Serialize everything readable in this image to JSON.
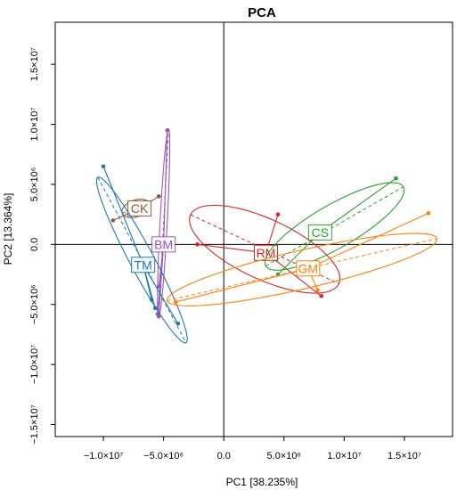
{
  "chart_data": {
    "type": "scatter",
    "title": "PCA",
    "xlabel": "PC1 [38.235%]",
    "ylabel": "PC2 [13.364%]",
    "xlim": [
      -14000000,
      19000000
    ],
    "ylim": [
      -16000000,
      18500000
    ],
    "x_ticks": [
      {
        "value": -10000000,
        "label": "−1.0×10⁷"
      },
      {
        "value": -5000000,
        "label": "−5.0×10⁶"
      },
      {
        "value": 0,
        "label": "0.0"
      },
      {
        "value": 5000000,
        "label": "5.0×10⁶"
      },
      {
        "value": 10000000,
        "label": "1.0×10⁷"
      },
      {
        "value": 15000000,
        "label": "1.5×10⁷"
      }
    ],
    "y_ticks": [
      {
        "value": -15000000,
        "label": "−1.5×10⁷"
      },
      {
        "value": -10000000,
        "label": "−1.0×10⁷"
      },
      {
        "value": -5000000,
        "label": "−5.0×10⁶"
      },
      {
        "value": 0,
        "label": "0.0"
      },
      {
        "value": 5000000,
        "label": "5.0×10⁶"
      },
      {
        "value": 10000000,
        "label": "1.0×10⁷"
      },
      {
        "value": 15000000,
        "label": "1.5×10⁷"
      }
    ],
    "reference_lines": {
      "x": 0,
      "y": 0
    },
    "grid": false,
    "legend": "none",
    "series": [
      {
        "name": "CK",
        "color": "#8B5A3C",
        "centroid": [
          -7000000,
          3000000
        ],
        "points": [
          [
            -5400000,
            4000000
          ],
          [
            -9200000,
            2000000
          ]
        ],
        "ellipse": {
          "cx": -7300000,
          "cy": 3000000,
          "rx": 1200000,
          "ry": 700000,
          "angle": 20
        }
      },
      {
        "name": "BM",
        "color": "#9B59B6",
        "centroid": [
          -5000000,
          0
        ],
        "points": [
          [
            -4700000,
            9500000
          ],
          [
            -5400000,
            -6000000
          ],
          [
            -5400000,
            -3500000
          ],
          [
            -5500000,
            -5800000
          ]
        ],
        "ellipse": {
          "cx": -5000000,
          "cy": 1750000,
          "rx": 7900000,
          "ry": 300000,
          "angle": 87
        }
      },
      {
        "name": "TM",
        "color": "#1F77B4",
        "centroid": [
          -6700000,
          -1700000
        ],
        "points": [
          [
            -10000000,
            6500000
          ],
          [
            -3800000,
            -6600000
          ],
          [
            -6000000,
            -4600000
          ],
          [
            -5700000,
            -5300000
          ]
        ],
        "ellipse": {
          "cx": -6800000,
          "cy": -1300000,
          "rx": 7800000,
          "ry": 1000000,
          "angle": -62
        }
      },
      {
        "name": "RM",
        "color": "#D62728",
        "centroid": [
          3500000,
          -700000
        ],
        "points": [
          [
            -2200000,
            0
          ],
          [
            4500000,
            2500000
          ],
          [
            8100000,
            -4300000
          ]
        ],
        "ellipse": {
          "cx": 3400000,
          "cy": -400000,
          "rx": 6800000,
          "ry": 2500000,
          "angle": -25
        }
      },
      {
        "name": "CS",
        "color": "#2CA02C",
        "centroid": [
          8000000,
          1000000
        ],
        "points": [
          [
            14300000,
            5500000
          ],
          [
            4500000,
            -2500000
          ]
        ],
        "ellipse": {
          "cx": 9200000,
          "cy": 1500000,
          "rx": 6600000,
          "ry": 1800000,
          "angle": 30
        }
      },
      {
        "name": "GM",
        "color": "#FF7F0E",
        "centroid": [
          7000000,
          -2000000
        ],
        "points": [
          [
            17000000,
            2600000
          ],
          [
            -4000000,
            -4800000
          ],
          [
            7800000,
            -3800000
          ]
        ],
        "ellipse": {
          "cx": 6500000,
          "cy": -2100000,
          "rx": 11500000,
          "ry": 1600000,
          "angle": 13
        }
      }
    ]
  }
}
